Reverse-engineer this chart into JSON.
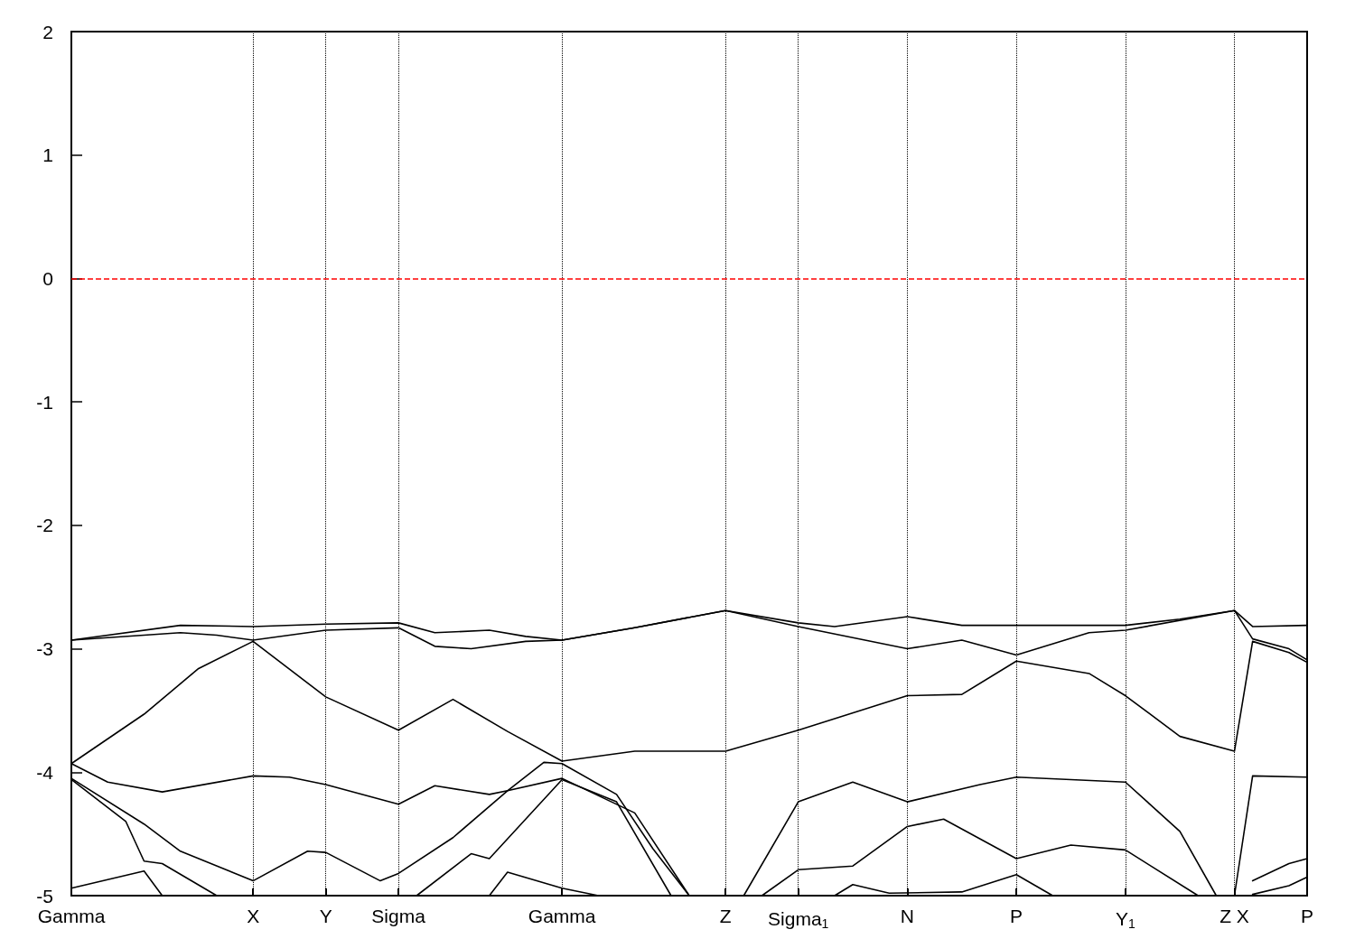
{
  "chart_data": {
    "type": "line",
    "ylim": [
      -5,
      2
    ],
    "categories": [
      "Gamma",
      null,
      null,
      null,
      null,
      null,
      null,
      null,
      null,
      null,
      "X",
      null,
      null,
      null,
      "Y",
      null,
      null,
      null,
      "Sigma",
      null,
      null,
      null,
      null,
      null,
      null,
      null,
      null,
      "Gamma",
      null,
      null,
      null,
      null,
      null,
      null,
      null,
      null,
      "Z",
      null,
      null,
      null,
      "Sigma$_{1}$",
      null,
      null,
      null,
      null,
      null,
      "N",
      null,
      null,
      null,
      null,
      null,
      "P",
      null,
      null,
      null,
      null,
      null,
      "Y$_{1}$",
      null,
      null,
      null,
      null,
      null,
      "Z X",
      null,
      null,
      null,
      "P"
    ],
    "yticks": [
      -5,
      -4,
      -3,
      -2,
      -1,
      0,
      1,
      2
    ],
    "grid": "x",
    "marker": "none",
    "line_style": "solid",
    "ref_lines": [
      {
        "axis": "y",
        "value": 0,
        "color": "#ff0000",
        "line_style": "dashed"
      }
    ],
    "series": [
      {
        "color": "#000000",
        "values": [
          -2.93,
          null,
          null,
          null,
          null,
          null,
          -2.81,
          null,
          null,
          null,
          -2.82,
          null,
          null,
          null,
          -2.8,
          null,
          null,
          null,
          -2.79,
          null,
          -2.87,
          null,
          null,
          -2.85,
          null,
          -2.9,
          null,
          -2.93,
          null,
          null,
          null,
          -2.83,
          null,
          null,
          null,
          null,
          -2.69,
          null,
          null,
          null,
          -2.79,
          null,
          -2.82,
          null,
          null,
          null,
          -2.74,
          null,
          null,
          -2.81,
          null,
          null,
          -2.81,
          null,
          null,
          null,
          null,
          null,
          -2.81,
          null,
          null,
          -2.76,
          null,
          null,
          -2.69,
          -2.82,
          null,
          null,
          -2.81
        ]
      },
      {
        "color": "#000000",
        "values": [
          -2.93,
          null,
          null,
          null,
          null,
          null,
          -2.87,
          null,
          -2.89,
          null,
          -2.93,
          null,
          null,
          null,
          -2.85,
          null,
          null,
          null,
          -2.83,
          null,
          -2.98,
          null,
          -3.0,
          null,
          null,
          -2.94,
          null,
          -2.93,
          null,
          null,
          null,
          -2.83,
          null,
          null,
          null,
          null,
          -2.69,
          null,
          null,
          null,
          -2.82,
          null,
          null,
          null,
          null,
          null,
          -3.0,
          null,
          null,
          -2.93,
          null,
          null,
          -3.05,
          null,
          null,
          null,
          -2.87,
          null,
          -2.85,
          null,
          null,
          null,
          null,
          null,
          -2.69,
          -2.92,
          null,
          -3.0,
          -3.09
        ]
      },
      {
        "color": "#000000",
        "values": [
          -3.93,
          null,
          null,
          null,
          -3.53,
          null,
          null,
          -3.16,
          null,
          null,
          -2.94,
          null,
          null,
          null,
          -3.39,
          null,
          null,
          null,
          -3.66,
          null,
          null,
          -3.41,
          null,
          null,
          -3.67,
          null,
          null,
          -3.91,
          null,
          null,
          null,
          -3.83,
          null,
          null,
          null,
          null,
          -3.83,
          null,
          null,
          null,
          -3.66,
          null,
          null,
          null,
          null,
          null,
          -3.38,
          null,
          null,
          -3.37,
          null,
          null,
          -3.1,
          null,
          null,
          null,
          -3.2,
          null,
          -3.38,
          null,
          null,
          -3.71,
          null,
          null,
          -3.83,
          -2.94,
          null,
          -3.03,
          -3.11
        ]
      },
      {
        "color": "#000000",
        "values": [
          -3.93,
          null,
          -4.08,
          null,
          null,
          -4.16,
          null,
          null,
          null,
          null,
          -4.03,
          null,
          -4.04,
          null,
          -4.1,
          null,
          null,
          null,
          -4.26,
          null,
          -4.11,
          null,
          null,
          -4.18,
          -4.15,
          null,
          null,
          -4.05,
          null,
          null,
          null,
          -4.33,
          null,
          null,
          -5,
          null,
          null,
          null,
          null,
          null,
          null,
          null,
          null,
          null,
          null,
          null,
          null,
          null,
          null,
          null,
          null,
          null,
          null,
          null,
          null,
          null,
          null,
          null,
          null,
          null,
          null,
          null,
          null,
          null,
          null,
          null,
          null,
          null,
          null
        ]
      },
      {
        "color": "#000000",
        "values": [
          null,
          null,
          null,
          null,
          null,
          null,
          null,
          null,
          null,
          null,
          null,
          null,
          null,
          null,
          null,
          null,
          null,
          null,
          null,
          null,
          null,
          null,
          null,
          null,
          null,
          null,
          null,
          null,
          null,
          null,
          null,
          null,
          null,
          null,
          null,
          null,
          null,
          -5,
          null,
          null,
          -4.24,
          null,
          null,
          -4.08,
          null,
          null,
          -4.24,
          null,
          null,
          null,
          -4.1,
          null,
          -4.04,
          null,
          null,
          null,
          null,
          null,
          -4.08,
          null,
          null,
          -4.48,
          null,
          -5,
          -5,
          -4.03,
          null,
          null,
          -4.04
        ]
      },
      {
        "color": "#000000",
        "values": [
          -4.05,
          null,
          null,
          null,
          -4.42,
          null,
          -4.64,
          null,
          null,
          null,
          -4.88,
          null,
          null,
          -4.64,
          -4.65,
          null,
          null,
          -4.88,
          -4.82,
          null,
          null,
          -4.53,
          null,
          null,
          -4.15,
          null,
          -3.92,
          -3.93,
          null,
          null,
          -4.18,
          null,
          -4.62,
          null,
          -5,
          null,
          null,
          null,
          null,
          null,
          null,
          null,
          null,
          null,
          null,
          null,
          null,
          null,
          null,
          null,
          null,
          null,
          null,
          null,
          null,
          null,
          null,
          null,
          null,
          null,
          null,
          null,
          null,
          null,
          null,
          null,
          null,
          null,
          null
        ]
      },
      {
        "color": "#000000",
        "values": [
          null,
          null,
          null,
          null,
          null,
          null,
          null,
          null,
          null,
          null,
          null,
          null,
          null,
          null,
          null,
          null,
          null,
          null,
          null,
          null,
          null,
          null,
          null,
          null,
          null,
          null,
          null,
          null,
          null,
          null,
          null,
          null,
          null,
          null,
          null,
          null,
          null,
          null,
          -5,
          null,
          -4.79,
          null,
          null,
          -4.76,
          null,
          null,
          -4.44,
          null,
          -4.38,
          null,
          null,
          null,
          -4.7,
          null,
          null,
          -4.59,
          null,
          null,
          -4.63,
          null,
          null,
          null,
          -5,
          null,
          null,
          null,
          null,
          null,
          null
        ]
      },
      {
        "color": "#000000",
        "values": [
          null,
          null,
          null,
          null,
          null,
          null,
          null,
          null,
          null,
          null,
          null,
          null,
          null,
          null,
          null,
          null,
          null,
          null,
          null,
          null,
          null,
          null,
          null,
          null,
          null,
          null,
          null,
          null,
          null,
          null,
          null,
          null,
          null,
          null,
          null,
          null,
          null,
          null,
          null,
          null,
          null,
          null,
          null,
          null,
          null,
          null,
          null,
          null,
          null,
          null,
          null,
          null,
          null,
          null,
          null,
          null,
          null,
          null,
          null,
          null,
          null,
          null,
          null,
          null,
          null,
          -4.88,
          null,
          -4.74,
          -4.7
        ]
      },
      {
        "color": "#000000",
        "values": [
          -4.06,
          null,
          null,
          -4.4,
          -4.72,
          -4.74,
          null,
          null,
          -5,
          null,
          null,
          null,
          null,
          null,
          null,
          null,
          null,
          null,
          null,
          null,
          null,
          null,
          null,
          null,
          null,
          null,
          null,
          null,
          null,
          null,
          null,
          null,
          null,
          null,
          null,
          null,
          null,
          null,
          null,
          null,
          null,
          null,
          null,
          null,
          null,
          null,
          null,
          null,
          null,
          null,
          null,
          null,
          null,
          null,
          null,
          null,
          null,
          null,
          null,
          null,
          null,
          null,
          null,
          null,
          null,
          null,
          null,
          null,
          null
        ]
      },
      {
        "color": "#000000",
        "values": [
          -4.94,
          null,
          null,
          null,
          -4.8,
          -5,
          null,
          null,
          null,
          null,
          null,
          null,
          null,
          null,
          null,
          null,
          null,
          null,
          null,
          null,
          null,
          null,
          null,
          null,
          null,
          null,
          null,
          null,
          null,
          null,
          null,
          null,
          null,
          null,
          null,
          null,
          null,
          null,
          null,
          null,
          null,
          null,
          null,
          null,
          null,
          null,
          null,
          null,
          null,
          null,
          null,
          null,
          null,
          null,
          null,
          null,
          null,
          null,
          null,
          null,
          null,
          null,
          null,
          null,
          null,
          null,
          null,
          null,
          null
        ]
      },
      {
        "color": "#000000",
        "values": [
          null,
          null,
          null,
          null,
          null,
          null,
          null,
          null,
          null,
          null,
          null,
          null,
          null,
          null,
          null,
          null,
          null,
          null,
          null,
          -5,
          null,
          null,
          -4.66,
          -4.7,
          null,
          null,
          null,
          -4.06,
          null,
          null,
          -4.24,
          null,
          null,
          -5,
          null,
          null,
          null,
          null,
          null,
          null,
          null,
          null,
          null,
          null,
          null,
          null,
          null,
          null,
          null,
          null,
          null,
          null,
          null,
          null,
          null,
          null,
          null,
          null,
          null,
          null,
          null,
          null,
          null,
          null,
          null,
          null,
          null,
          null,
          null
        ]
      },
      {
        "color": "#000000",
        "values": [
          null,
          null,
          null,
          null,
          null,
          null,
          null,
          null,
          null,
          null,
          null,
          null,
          null,
          null,
          null,
          null,
          null,
          null,
          null,
          null,
          null,
          null,
          null,
          -5,
          -4.81,
          null,
          null,
          -4.94,
          null,
          -5,
          null,
          null,
          null,
          null,
          null,
          null,
          null,
          null,
          null,
          null,
          null,
          null,
          null,
          null,
          null,
          null,
          null,
          null,
          null,
          null,
          null,
          null,
          null,
          null,
          null,
          null,
          null,
          null,
          null,
          null,
          null,
          null,
          null,
          null,
          null,
          null,
          null,
          null,
          null
        ]
      },
      {
        "color": "#000000",
        "values": [
          null,
          null,
          null,
          null,
          null,
          null,
          null,
          null,
          null,
          null,
          null,
          null,
          null,
          null,
          null,
          null,
          null,
          null,
          null,
          null,
          null,
          null,
          null,
          null,
          null,
          null,
          null,
          null,
          null,
          null,
          null,
          null,
          null,
          null,
          null,
          null,
          null,
          null,
          null,
          null,
          null,
          null,
          -5,
          -4.91,
          null,
          -4.98,
          null,
          null,
          null,
          -4.97,
          null,
          null,
          -4.83,
          null,
          -5,
          null,
          null,
          null,
          null,
          null,
          null,
          null,
          null,
          null,
          null,
          null,
          null,
          null,
          null
        ]
      },
      {
        "color": "#000000",
        "values": [
          null,
          null,
          null,
          null,
          null,
          null,
          null,
          null,
          null,
          null,
          null,
          null,
          null,
          null,
          null,
          null,
          null,
          null,
          null,
          null,
          null,
          null,
          null,
          null,
          null,
          null,
          null,
          null,
          null,
          null,
          null,
          null,
          null,
          null,
          null,
          null,
          null,
          null,
          null,
          null,
          null,
          null,
          null,
          null,
          null,
          null,
          null,
          null,
          null,
          null,
          null,
          null,
          null,
          null,
          null,
          null,
          null,
          null,
          null,
          null,
          null,
          null,
          null,
          null,
          null,
          -4.99,
          null,
          -4.92,
          -4.85
        ]
      }
    ]
  }
}
